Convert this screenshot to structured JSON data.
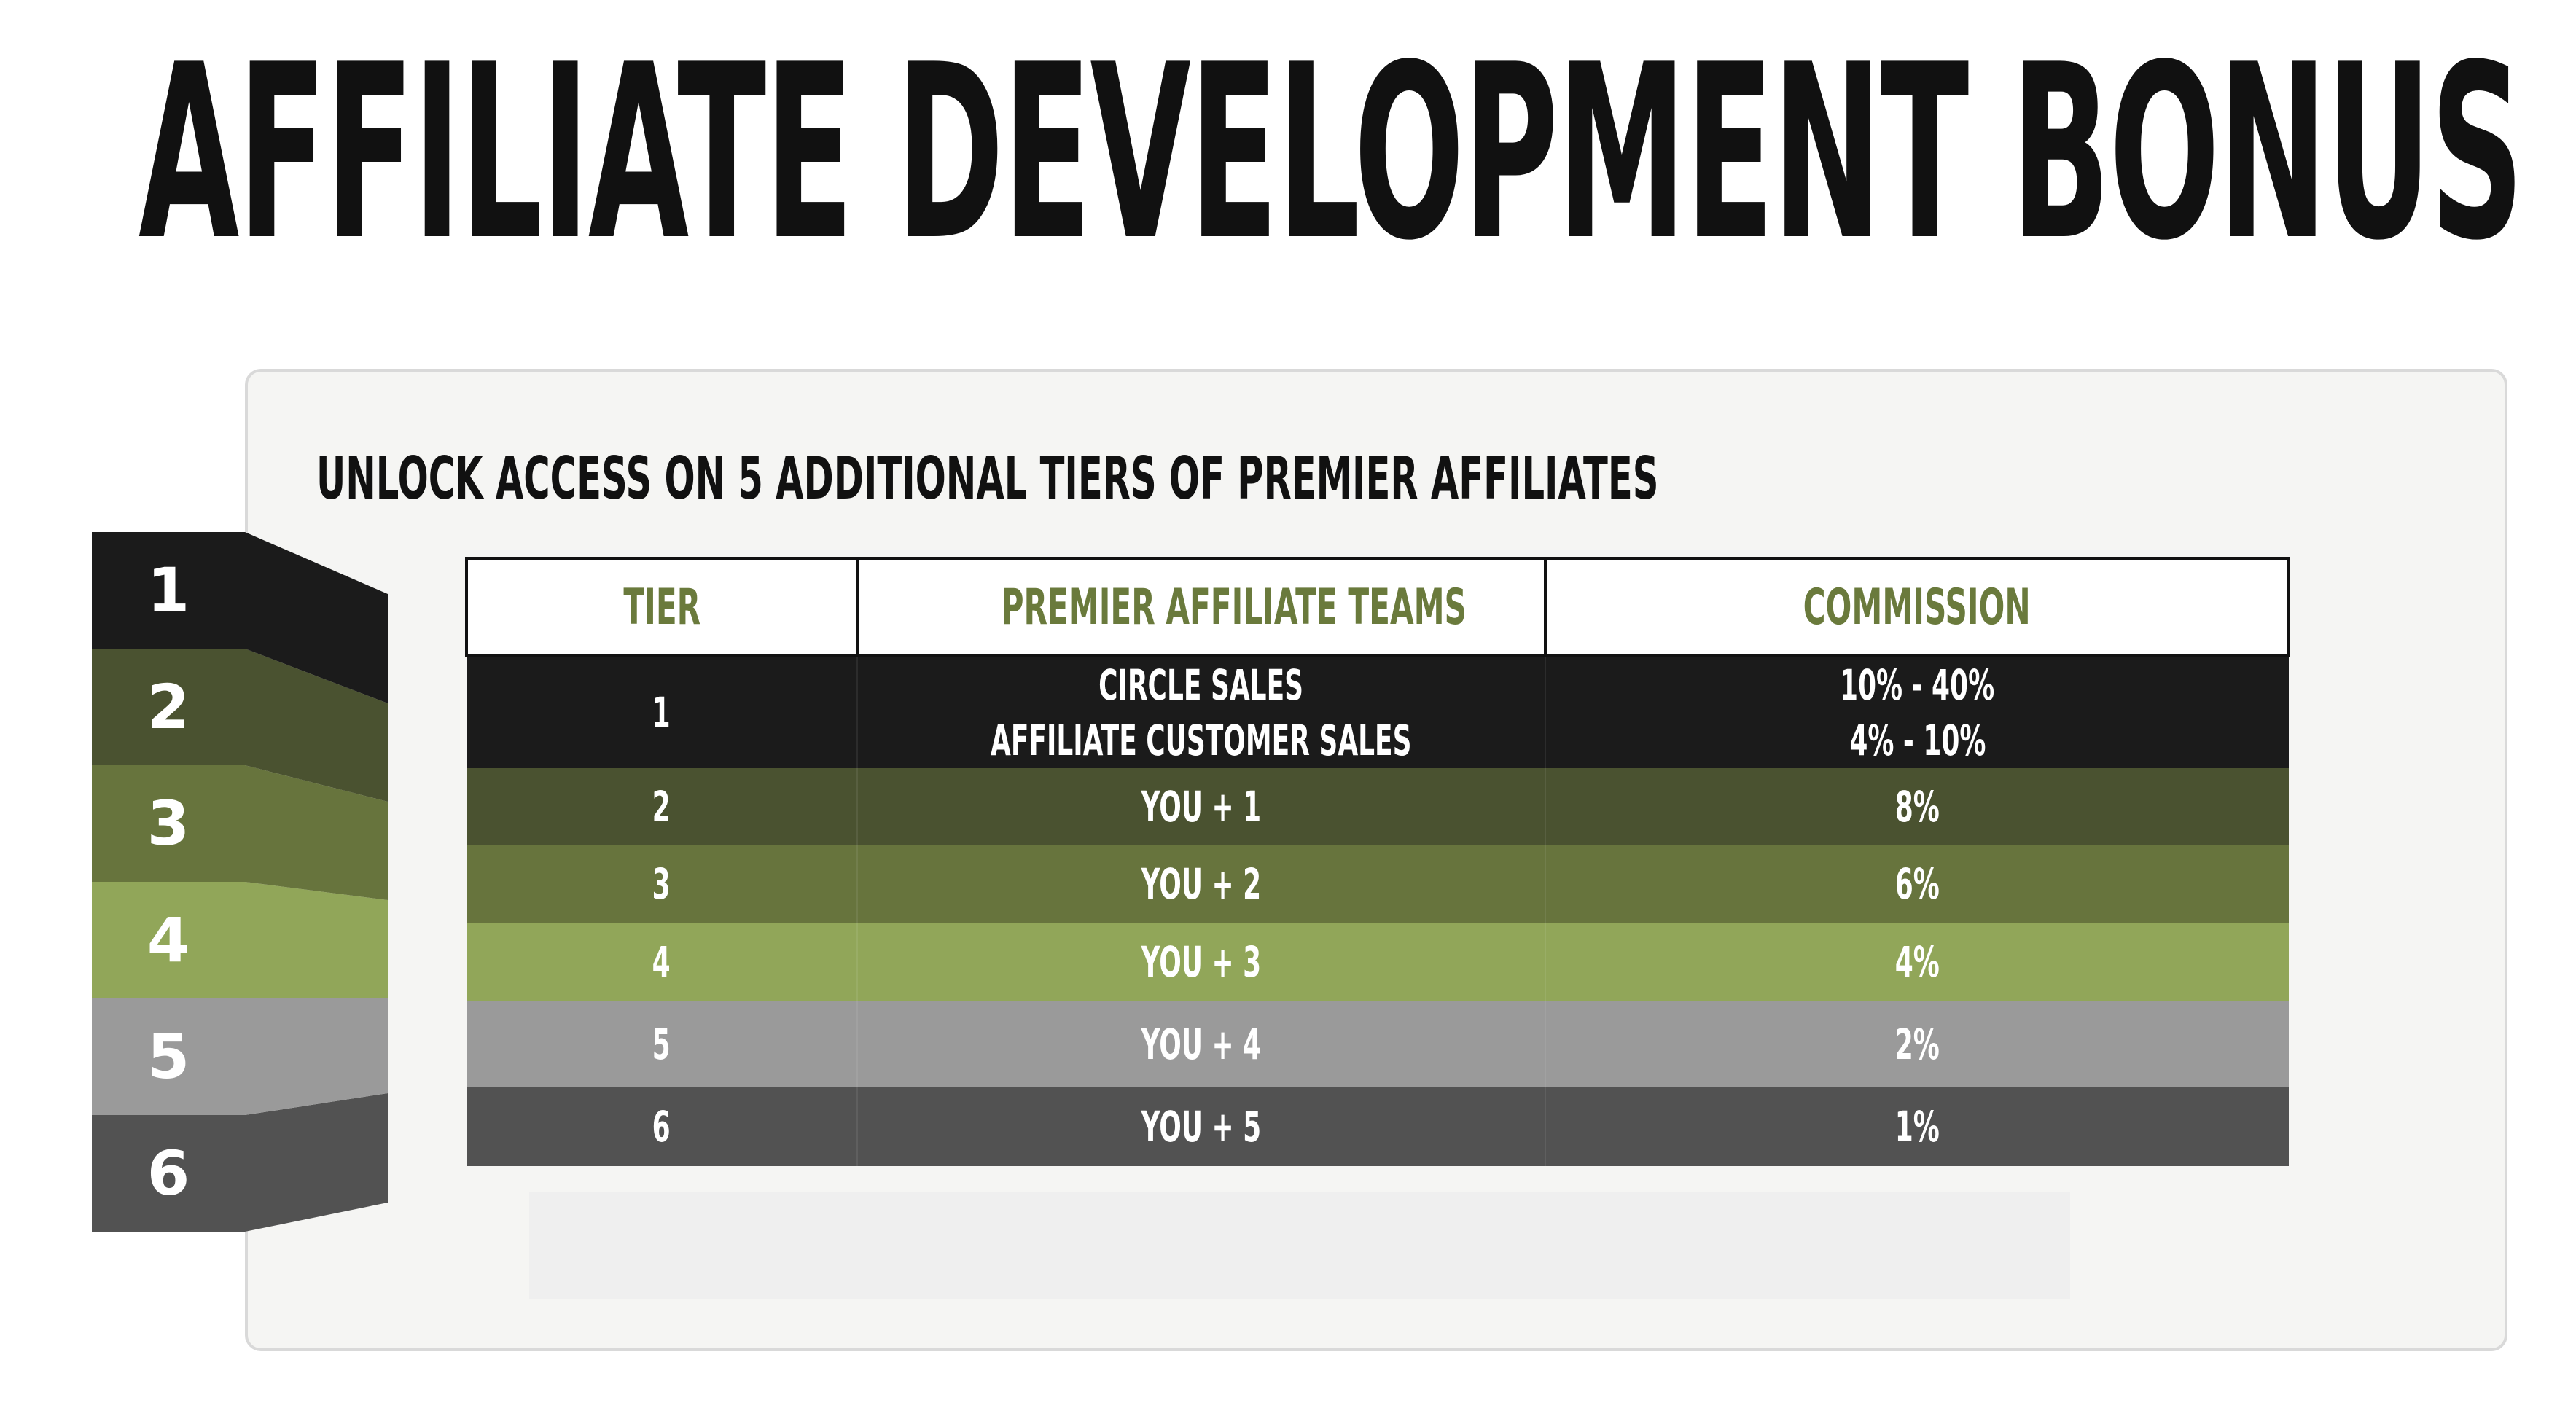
{
  "title": "AFFILIATE DEVELOPMENT BONUS",
  "subtitle": "UNLOCK ACCESS ON 5 ADDITIONAL TIERS OF PREMIER AFFILIATES",
  "colors": {
    "tier1": "#1b1b1b",
    "tier2": "#4a5230",
    "tier3": "#67743d",
    "tier4": "#91a659",
    "tier5": "#9a9a9a",
    "tier6": "#525252",
    "header_text": "#6a7a3c"
  },
  "tier_stack": [
    "1",
    "2",
    "3",
    "4",
    "5",
    "6"
  ],
  "table": {
    "headers": [
      "TIER",
      "PREMIER AFFILIATE TEAMS",
      "COMMISSION"
    ],
    "rows": [
      {
        "tier": "1",
        "teams": [
          "CIRCLE SALES",
          "AFFILIATE CUSTOMER SALES"
        ],
        "commission": [
          "10% - 40%",
          "4% - 10%"
        ]
      },
      {
        "tier": "2",
        "teams": [
          "YOU + 1"
        ],
        "commission": [
          "8%"
        ]
      },
      {
        "tier": "3",
        "teams": [
          "YOU + 2"
        ],
        "commission": [
          "6%"
        ]
      },
      {
        "tier": "4",
        "teams": [
          "YOU + 3"
        ],
        "commission": [
          "4%"
        ]
      },
      {
        "tier": "5",
        "teams": [
          "YOU + 4"
        ],
        "commission": [
          "2%"
        ]
      },
      {
        "tier": "6",
        "teams": [
          "YOU + 5"
        ],
        "commission": [
          "1%"
        ]
      }
    ]
  }
}
